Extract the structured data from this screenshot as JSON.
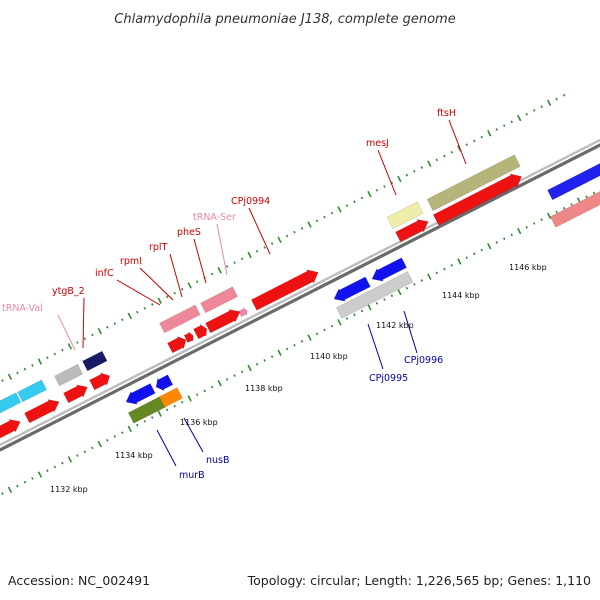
{
  "title": "Chlamydophila pneumoniae J138, complete genome",
  "footer": {
    "accession": "Accession: NC_002491",
    "summary": "Topology: circular; Length: 1,226,565 bp; Genes: 1,110"
  },
  "colors": {
    "backbone": "#8a8a8a",
    "ticks": "#2e8b2e",
    "label_red": "#cc0000",
    "label_pink": "#ee88aa",
    "label_blue": "#0000aa"
  },
  "kbp_labels": [
    "1132 kbp",
    "1134 kbp",
    "1136 kbp",
    "1138 kbp",
    "1140 kbp",
    "1142 kbp",
    "1144 kbp",
    "1146 kbp"
  ],
  "upper_genes": [
    {
      "name": "tRNA-Val",
      "color": "pink"
    },
    {
      "name": "ytgB_2",
      "color": "red"
    },
    {
      "name": "infC",
      "color": "red"
    },
    {
      "name": "rpmI",
      "color": "red"
    },
    {
      "name": "rplT",
      "color": "red"
    },
    {
      "name": "pheS",
      "color": "red"
    },
    {
      "name": "tRNA-Ser",
      "color": "pink"
    },
    {
      "name": "CPj0994",
      "color": "red"
    },
    {
      "name": "mesJ",
      "color": "red"
    },
    {
      "name": "ftsH",
      "color": "red"
    }
  ],
  "lower_genes": [
    {
      "name": "murB",
      "color": "blue"
    },
    {
      "name": "nusB",
      "color": "blue"
    },
    {
      "name": "CPj0995",
      "color": "blue"
    },
    {
      "name": "CPj0996",
      "color": "blue"
    }
  ]
}
